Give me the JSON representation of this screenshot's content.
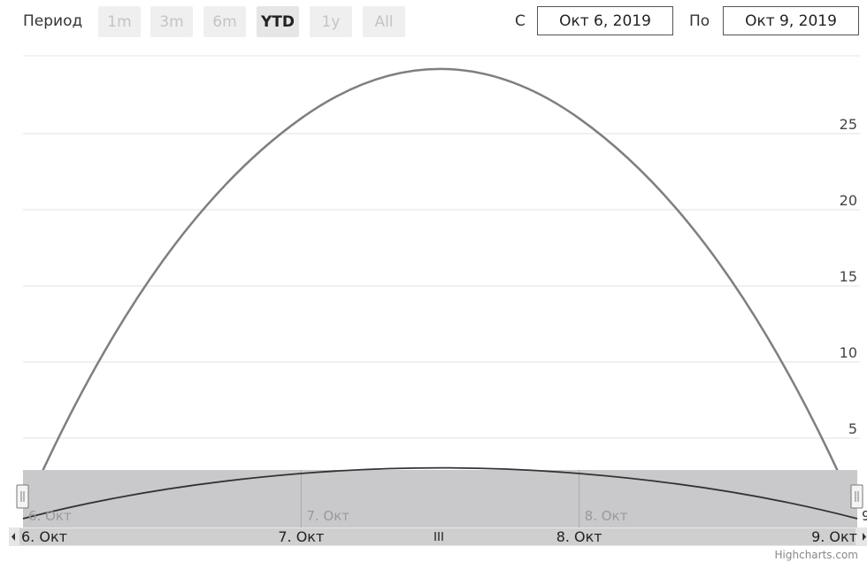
{
  "toolbar": {
    "period_label": "Период",
    "buttons": [
      {
        "label": "1m",
        "active": false
      },
      {
        "label": "3m",
        "active": false
      },
      {
        "label": "6m",
        "active": false
      },
      {
        "label": "YTD",
        "active": true
      },
      {
        "label": "1y",
        "active": false
      },
      {
        "label": "All",
        "active": false
      }
    ],
    "from_label": "С",
    "from_value": "Окт 6, 2019",
    "to_label": "По",
    "to_value": "Окт 9, 2019"
  },
  "chart_data": {
    "type": "line",
    "title": "",
    "xlabel": "",
    "ylabel": "",
    "x": [
      "2019-10-06",
      "2019-10-07",
      "2019-10-08",
      "2019-10-09"
    ],
    "x_tick_labels": [
      "6. Окт",
      "7. Окт",
      "8. Окт",
      "9. Окт"
    ],
    "series": [
      {
        "values": [
          0,
          26,
          26,
          0
        ],
        "color": "#7f7f7f"
      }
    ],
    "y_ticks": [
      5,
      10,
      15,
      20,
      25
    ],
    "ylim": [
      0,
      30
    ],
    "grid": true,
    "y_axis_side": "right",
    "navigator": {
      "labels": [
        "6. Окт",
        "7. Окт",
        "8. Окт",
        "9. Окт"
      ],
      "edge_label": "9"
    }
  },
  "credits": "Highcharts.com"
}
